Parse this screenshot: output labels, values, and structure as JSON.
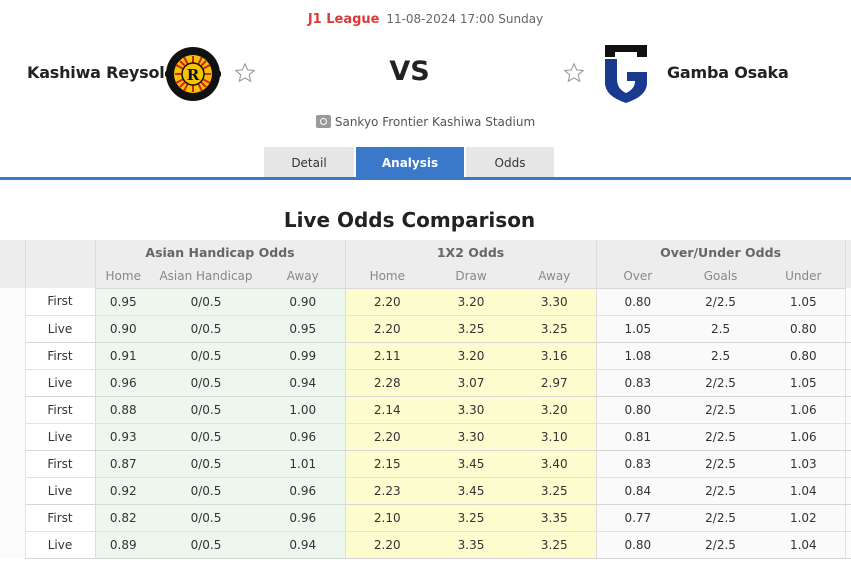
{
  "match": {
    "league": "J1 League",
    "datetime": "11-08-2024 17:00 Sunday",
    "home_team": "Kashiwa Reysol",
    "away_team": "Gamba Osaka",
    "vs_label": "VS",
    "venue": "Sankyo Frontier Kashiwa Stadium",
    "home_logo": "kashiwa-reysol-crest",
    "away_logo": "gamba-osaka-crest",
    "favorite_icon": "star-outline-icon"
  },
  "tabs": [
    {
      "label": "Detail",
      "active": false
    },
    {
      "label": "Analysis",
      "active": true
    },
    {
      "label": "Odds",
      "active": false
    }
  ],
  "colors": {
    "accent": "#3a78c9",
    "league": "#d93a3a",
    "asian_handicap_bg": "#eef7ee",
    "one_x_two_bg": "#fdfccf"
  },
  "section_title": "Live Odds Comparison",
  "table": {
    "groups": [
      "Asian Handicap Odds",
      "1X2 Odds",
      "Over/Under Odds"
    ],
    "subheaders": [
      "Home",
      "Asian Handicap",
      "Away",
      "Home",
      "Draw",
      "Away",
      "Over",
      "Goals",
      "Under"
    ],
    "rows": [
      {
        "type": "First",
        "ah": [
          "0.95",
          "0/0.5",
          "0.90"
        ],
        "x12": [
          "2.20",
          "3.20",
          "3.30"
        ],
        "ou": [
          "0.80",
          "2/2.5",
          "1.05"
        ]
      },
      {
        "type": "Live",
        "ah": [
          "0.90",
          "0/0.5",
          "0.95"
        ],
        "x12": [
          "2.20",
          "3.25",
          "3.25"
        ],
        "ou": [
          "1.05",
          "2.5",
          "0.80"
        ]
      },
      {
        "type": "First",
        "ah": [
          "0.91",
          "0/0.5",
          "0.99"
        ],
        "x12": [
          "2.11",
          "3.20",
          "3.16"
        ],
        "ou": [
          "1.08",
          "2.5",
          "0.80"
        ]
      },
      {
        "type": "Live",
        "ah": [
          "0.96",
          "0/0.5",
          "0.94"
        ],
        "x12": [
          "2.28",
          "3.07",
          "2.97"
        ],
        "ou": [
          "0.83",
          "2/2.5",
          "1.05"
        ]
      },
      {
        "type": "First",
        "ah": [
          "0.88",
          "0/0.5",
          "1.00"
        ],
        "x12": [
          "2.14",
          "3.30",
          "3.20"
        ],
        "ou": [
          "0.80",
          "2/2.5",
          "1.06"
        ]
      },
      {
        "type": "Live",
        "ah": [
          "0.93",
          "0/0.5",
          "0.96"
        ],
        "x12": [
          "2.20",
          "3.30",
          "3.10"
        ],
        "ou": [
          "0.81",
          "2/2.5",
          "1.06"
        ]
      },
      {
        "type": "First",
        "ah": [
          "0.87",
          "0/0.5",
          "1.01"
        ],
        "x12": [
          "2.15",
          "3.45",
          "3.40"
        ],
        "ou": [
          "0.83",
          "2/2.5",
          "1.03"
        ]
      },
      {
        "type": "Live",
        "ah": [
          "0.92",
          "0/0.5",
          "0.96"
        ],
        "x12": [
          "2.23",
          "3.45",
          "3.25"
        ],
        "ou": [
          "0.84",
          "2/2.5",
          "1.04"
        ]
      },
      {
        "type": "First",
        "ah": [
          "0.82",
          "0/0.5",
          "0.96"
        ],
        "x12": [
          "2.10",
          "3.25",
          "3.35"
        ],
        "ou": [
          "0.77",
          "2/2.5",
          "1.02"
        ]
      },
      {
        "type": "Live",
        "ah": [
          "0.89",
          "0/0.5",
          "0.94"
        ],
        "x12": [
          "2.20",
          "3.35",
          "3.25"
        ],
        "ou": [
          "0.80",
          "2/2.5",
          "1.04"
        ]
      }
    ]
  }
}
